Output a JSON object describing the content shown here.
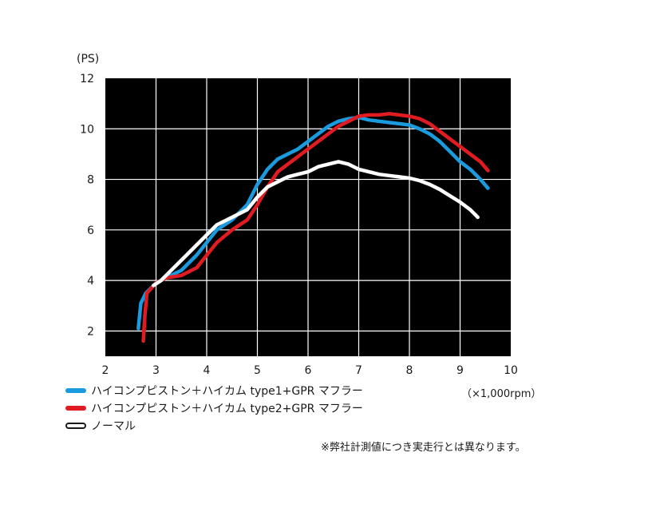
{
  "chart_data": {
    "type": "line",
    "y_unit_label": "(PS)",
    "x_unit_label": "（×1,000rpm）",
    "xlim": [
      2,
      10
    ],
    "ylim": [
      1,
      12
    ],
    "x_ticks": [
      2,
      3,
      4,
      5,
      6,
      7,
      8,
      9,
      10
    ],
    "y_ticks": [
      2,
      4,
      6,
      8,
      10,
      12
    ],
    "grid": true,
    "background": "#000000",
    "grid_color": "#ffffff",
    "series": [
      {
        "name": "ハイコンプピストン＋ハイカム type1+GPR マフラー",
        "color": "#1a9be0",
        "x": [
          2.65,
          2.7,
          2.8,
          3.0,
          3.2,
          3.5,
          3.8,
          4.0,
          4.2,
          4.5,
          4.8,
          5.0,
          5.2,
          5.4,
          5.6,
          5.8,
          6.0,
          6.2,
          6.4,
          6.6,
          6.8,
          7.0,
          7.2,
          7.4,
          7.6,
          7.8,
          8.0,
          8.2,
          8.4,
          8.6,
          8.8,
          9.0,
          9.2,
          9.4,
          9.55
        ],
        "y": [
          2.1,
          3.1,
          3.5,
          3.9,
          4.1,
          4.4,
          5.0,
          5.5,
          6.0,
          6.4,
          7.0,
          7.8,
          8.4,
          8.8,
          9.0,
          9.2,
          9.5,
          9.8,
          10.1,
          10.3,
          10.4,
          10.45,
          10.35,
          10.3,
          10.25,
          10.2,
          10.15,
          10.0,
          9.8,
          9.5,
          9.1,
          8.7,
          8.4,
          8.0,
          7.65
        ]
      },
      {
        "name": "ハイコンプピストン＋ハイカム type2+GPR マフラー",
        "color": "#e01b22",
        "x": [
          2.75,
          2.78,
          2.82,
          3.0,
          3.2,
          3.5,
          3.8,
          4.0,
          4.2,
          4.5,
          4.8,
          5.0,
          5.2,
          5.4,
          5.6,
          5.8,
          6.0,
          6.2,
          6.4,
          6.6,
          6.8,
          7.0,
          7.2,
          7.4,
          7.6,
          7.8,
          8.0,
          8.2,
          8.4,
          8.6,
          8.8,
          9.0,
          9.2,
          9.4,
          9.55
        ],
        "y": [
          1.6,
          2.6,
          3.5,
          3.9,
          4.1,
          4.2,
          4.5,
          5.0,
          5.5,
          6.0,
          6.4,
          7.0,
          7.7,
          8.3,
          8.6,
          8.9,
          9.2,
          9.5,
          9.8,
          10.1,
          10.3,
          10.5,
          10.55,
          10.55,
          10.6,
          10.55,
          10.5,
          10.4,
          10.2,
          9.9,
          9.6,
          9.3,
          9.0,
          8.7,
          8.35
        ]
      },
      {
        "name": "ノーマル",
        "color": "#ffffff",
        "x": [
          2.95,
          3.1,
          3.3,
          3.6,
          3.9,
          4.2,
          4.5,
          4.8,
          5.0,
          5.2,
          5.4,
          5.6,
          5.8,
          6.0,
          6.2,
          6.4,
          6.6,
          6.8,
          7.0,
          7.2,
          7.4,
          7.6,
          7.8,
          8.0,
          8.2,
          8.4,
          8.6,
          8.8,
          9.0,
          9.2,
          9.3,
          9.35
        ],
        "y": [
          3.8,
          4.0,
          4.4,
          5.0,
          5.6,
          6.2,
          6.5,
          6.8,
          7.3,
          7.7,
          7.9,
          8.1,
          8.2,
          8.3,
          8.5,
          8.6,
          8.7,
          8.6,
          8.4,
          8.3,
          8.2,
          8.15,
          8.1,
          8.05,
          7.95,
          7.8,
          7.6,
          7.35,
          7.1,
          6.8,
          6.6,
          6.5
        ]
      }
    ],
    "note": "※弊社計測値につき実走行とは異なります。"
  }
}
